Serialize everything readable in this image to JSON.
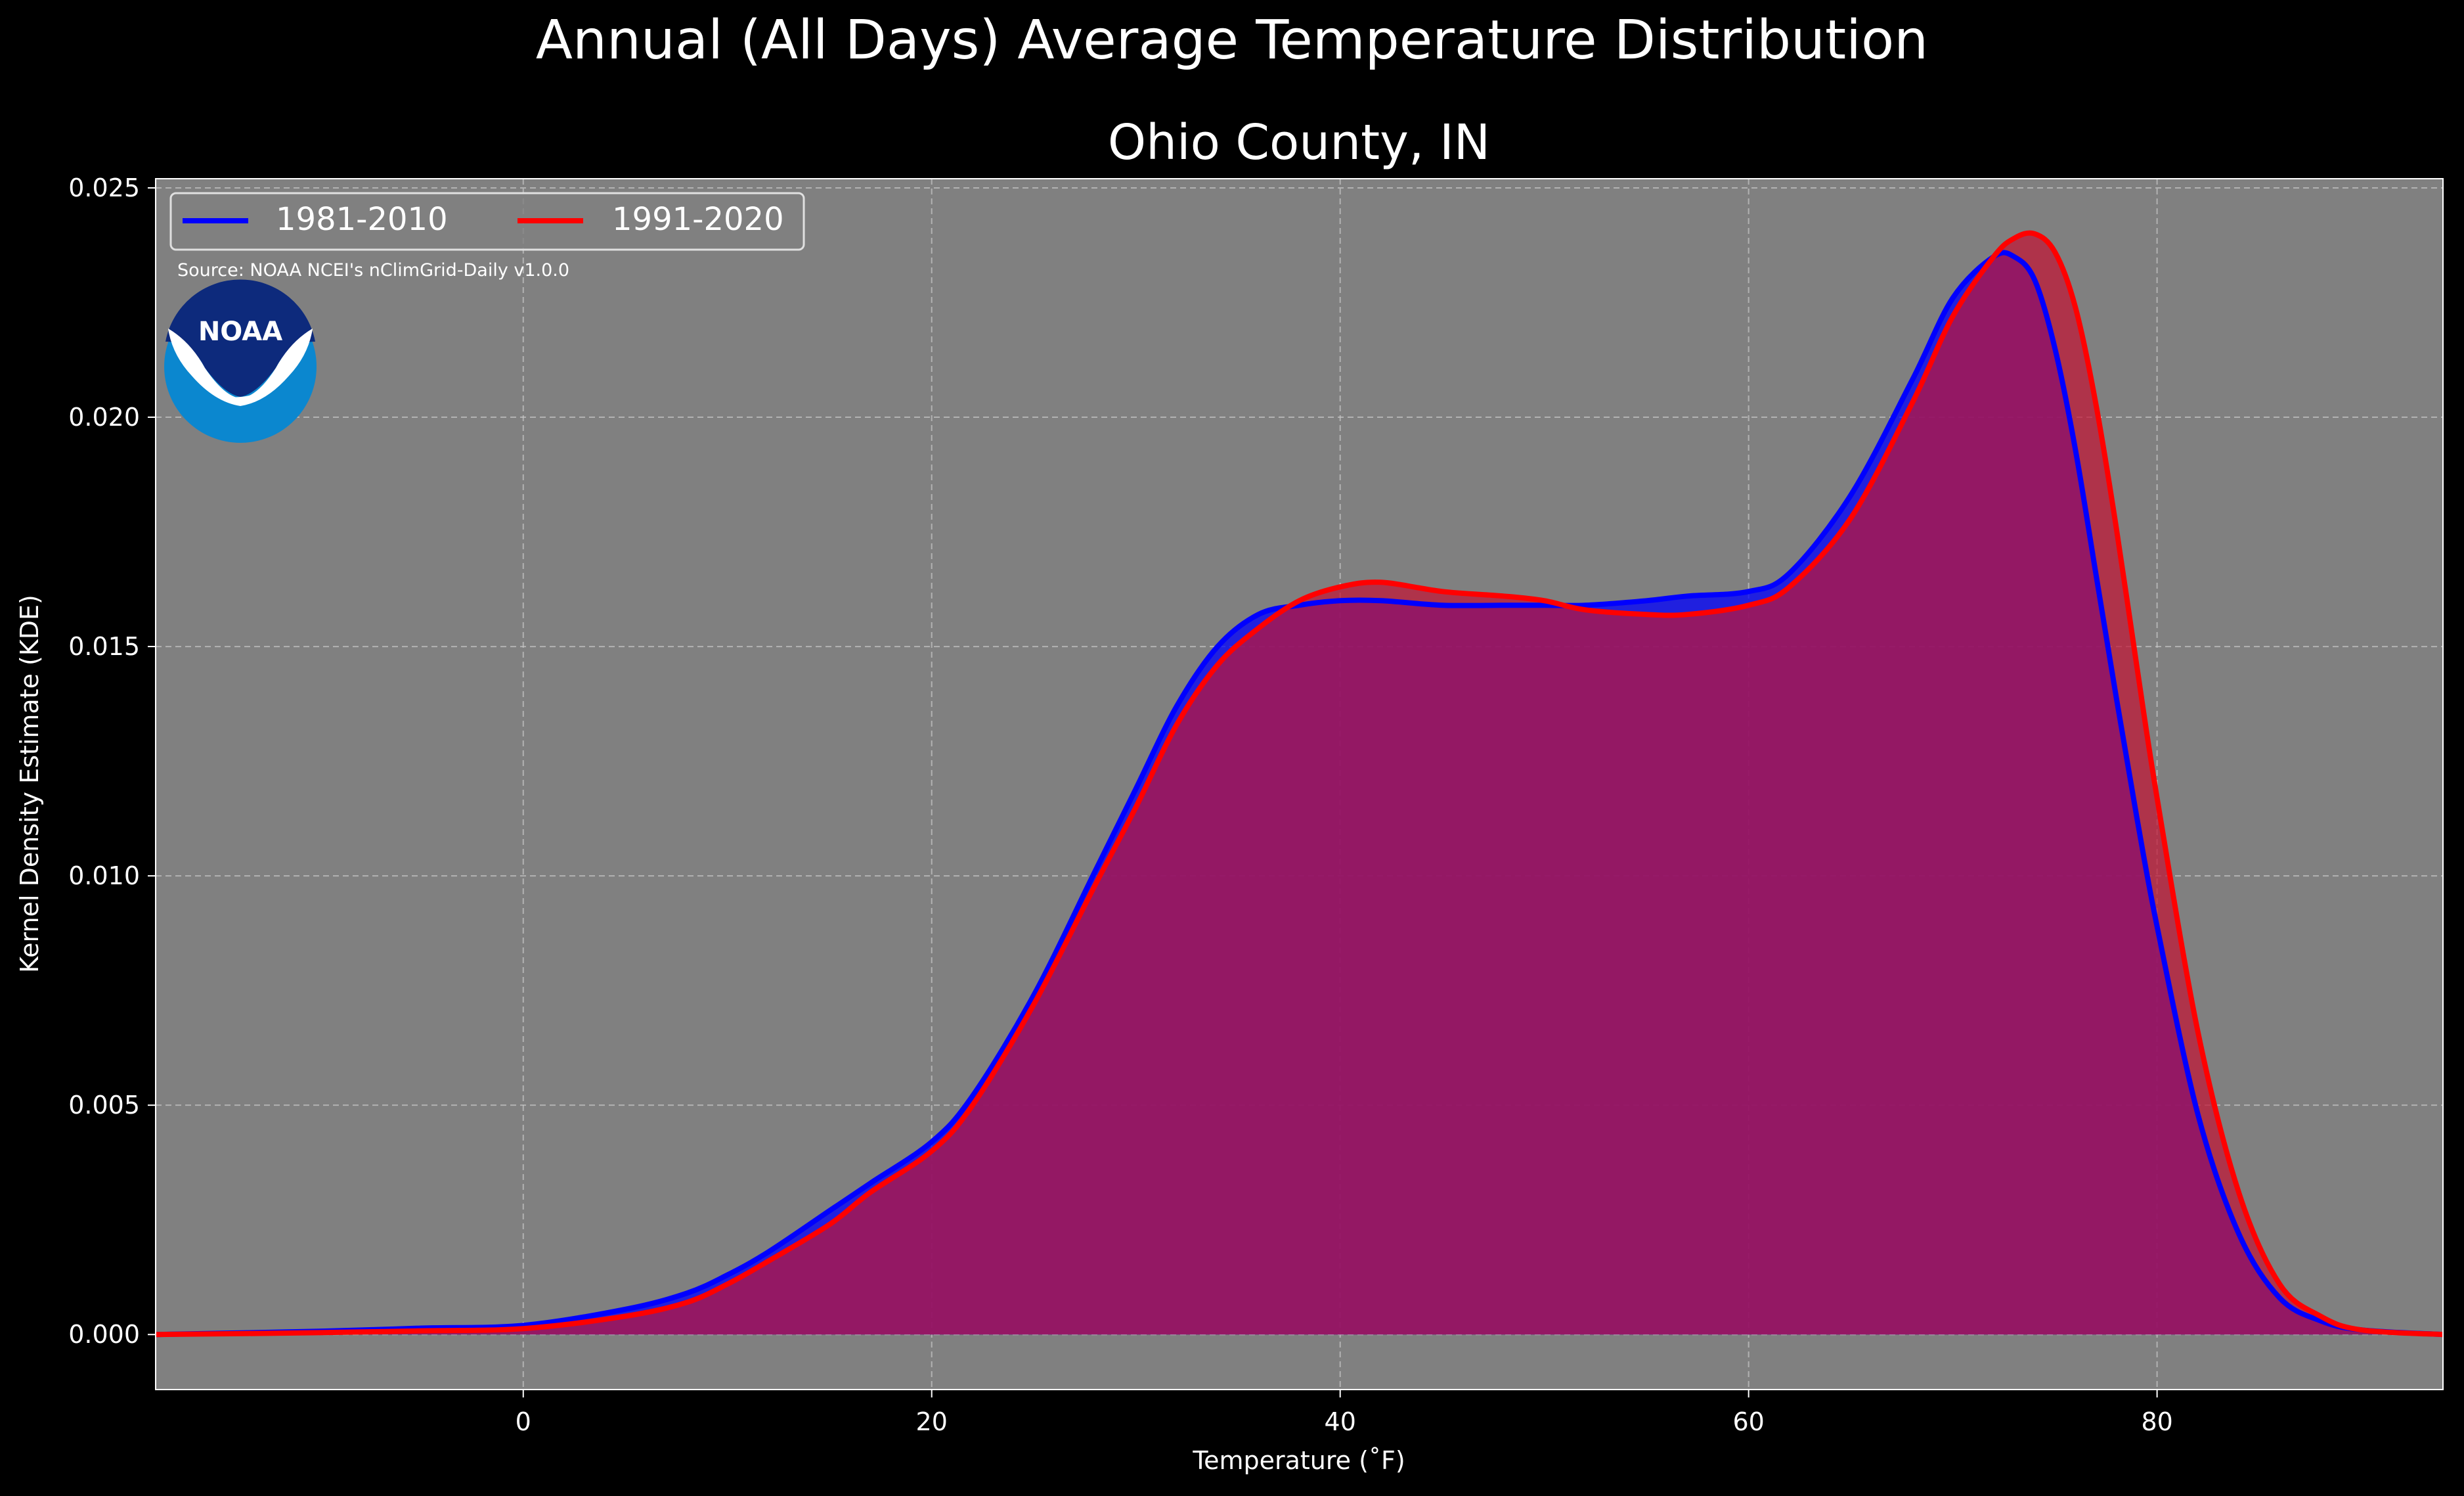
{
  "figure": {
    "suptitle": "Annual (All Days) Average Temperature Distribution",
    "background": "#000000",
    "plot_background": "#808080"
  },
  "chart_data": {
    "type": "area",
    "title": "Ohio County, IN",
    "xlabel": "Temperature ($^\\circ$F)",
    "xlabel_display": "Temperature (˚F)",
    "ylabel": "Kernel Density Estimate (KDE)",
    "xlim": [
      -18,
      94
    ],
    "ylim": [
      -0.0012,
      0.0252
    ],
    "xticks": [
      0,
      20,
      40,
      60,
      80
    ],
    "xtick_labels": [
      "0",
      "20",
      "40",
      "60",
      "80"
    ],
    "yticks": [
      0,
      0.005,
      0.01,
      0.015,
      0.02,
      0.025
    ],
    "ytick_labels": [
      "0.000",
      "0.005",
      "0.010",
      "0.015",
      "0.020",
      "0.025"
    ],
    "grid": true,
    "legend_position": "top-left",
    "annotation": "Source: NOAA NCEI's nClimGrid-Daily v1.0.0",
    "logo_text": "NOAA",
    "x": [
      -18,
      -10,
      -5,
      0,
      5,
      8,
      10,
      12,
      15,
      17,
      20,
      22,
      25,
      28,
      30,
      32,
      34,
      36,
      38,
      40,
      42,
      45,
      48,
      50,
      52,
      55,
      57,
      60,
      62,
      65,
      68,
      70,
      72,
      73,
      74,
      75,
      76,
      77,
      78,
      79,
      80,
      82,
      84,
      86,
      88,
      90,
      94
    ],
    "series": [
      {
        "name": "1981-2010",
        "color": "#0000ff",
        "fill": "#0000ff",
        "values": [
          0.0,
          7e-05,
          0.00014,
          0.0002,
          0.00055,
          0.0009,
          0.0013,
          0.0018,
          0.0027,
          0.0033,
          0.0042,
          0.0052,
          0.0074,
          0.0101,
          0.0119,
          0.0137,
          0.015,
          0.0157,
          0.0159,
          0.016,
          0.016,
          0.0159,
          0.0159,
          0.0159,
          0.0159,
          0.016,
          0.0161,
          0.0162,
          0.0166,
          0.0183,
          0.0208,
          0.0226,
          0.0235,
          0.0235,
          0.023,
          0.0215,
          0.0193,
          0.0166,
          0.0139,
          0.0113,
          0.0089,
          0.0048,
          0.0022,
          0.0008,
          0.0003,
          0.0001,
          0.0
        ]
      },
      {
        "name": "1991-2020",
        "color": "#ff0000",
        "fill": "#c01535",
        "values": [
          0.0,
          4e-05,
          8e-05,
          0.00013,
          0.0004,
          0.0007,
          0.0011,
          0.0016,
          0.0024,
          0.0031,
          0.004,
          0.005,
          0.0072,
          0.0098,
          0.0115,
          0.0133,
          0.0146,
          0.0154,
          0.016,
          0.0163,
          0.0164,
          0.0162,
          0.0161,
          0.016,
          0.0158,
          0.0157,
          0.0157,
          0.0159,
          0.0163,
          0.0178,
          0.0203,
          0.0222,
          0.0235,
          0.0239,
          0.024,
          0.0236,
          0.0224,
          0.0203,
          0.0176,
          0.0146,
          0.0117,
          0.0066,
          0.0031,
          0.0011,
          0.0004,
          0.0001,
          0.0
        ]
      }
    ]
  }
}
